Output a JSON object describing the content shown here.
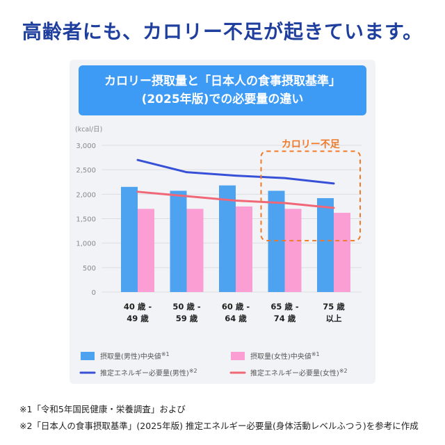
{
  "headline": "高齢者にも、カロリー不足が起きています。",
  "colors": {
    "headline": "#1f3f9e",
    "banner": "#3d9bf5",
    "panel": "#f2f3f6",
    "intake_male": "#4da3f0",
    "intake_female": "#fb9ed4",
    "required_male": "#3650d8",
    "required_female": "#f06878",
    "deficit": "#f07a2a"
  },
  "chart_data": {
    "type": "bar",
    "title_line1": "カロリー摂取量と「日本人の食事摂取基準」",
    "title_line2": "(2025年版)での必要量の違い",
    "ylabel": "(kcal/日)",
    "ylim": [
      0,
      3000
    ],
    "yticks": [
      "3,000",
      "2,500",
      "2,000",
      "1,500",
      "1,000",
      "500",
      "0"
    ],
    "ytick_values": [
      3000,
      2500,
      2000,
      1500,
      1000,
      500,
      0
    ],
    "grid": true,
    "categories": [
      [
        "40 歳 -",
        "49 歳"
      ],
      [
        "50 歳 -",
        "59 歳"
      ],
      [
        "60 歳 -",
        "64 歳"
      ],
      [
        "65 歳 -",
        "74 歳"
      ],
      [
        "75 歳",
        "以上"
      ]
    ],
    "series": [
      {
        "name": "摂取量(男性)中央値",
        "note": "※1",
        "kind": "bar",
        "values": [
          2150,
          2070,
          2180,
          2070,
          1920
        ]
      },
      {
        "name": "摂取量(女性)中央値",
        "note": "※1",
        "kind": "bar",
        "values": [
          1700,
          1700,
          1750,
          1700,
          1620
        ]
      },
      {
        "name": "推定エネルギー必要量(男性)",
        "note": "※2",
        "kind": "line",
        "values": [
          2700,
          2450,
          2380,
          2330,
          2220
        ]
      },
      {
        "name": "推定エネルギー必要量(女性)",
        "note": "※2",
        "kind": "line",
        "values": [
          2050,
          1960,
          1870,
          1820,
          1720
        ]
      }
    ],
    "annotation": "カロリー不足",
    "legend_position": "bottom"
  },
  "footnotes": [
    "※1「令和5年国民健康・栄養調査」および",
    "※2「日本人の食事摂取基準」(2025年版) 推定エネルギー必要量(身体活動レベルふつう)を参考に作成"
  ]
}
